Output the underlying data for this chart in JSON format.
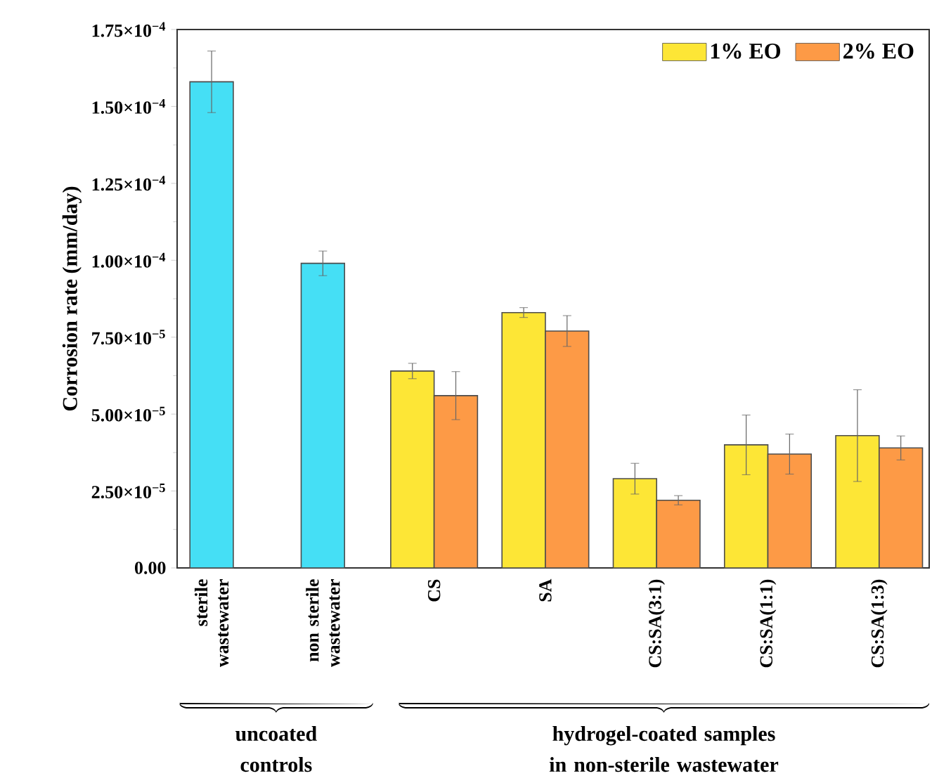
{
  "chart_data": {
    "type": "bar",
    "ylabel": "Corrosion rate (mm/day)",
    "categories": [
      "sterile wastewater",
      "non sterile wastewater",
      "CS",
      "SA",
      "CS:SA(3:1)",
      "CS:SA(1:1)",
      "CS:SA(1:3)"
    ],
    "series": [
      {
        "color": "#45dff5",
        "values": [
          0.000158,
          9.9e-05,
          null,
          null,
          null,
          null,
          null
        ],
        "errors": [
          1e-05,
          4e-06,
          null,
          null,
          null,
          null,
          null
        ]
      },
      {
        "name": "1% EO",
        "color": "#fde636",
        "values": [
          null,
          null,
          6.4e-05,
          8.3e-05,
          2.9e-05,
          4e-05,
          4.3e-05
        ],
        "errors": [
          null,
          null,
          2.5e-06,
          1.6e-06,
          5e-06,
          9.7e-06,
          1.49e-05
        ]
      },
      {
        "name": "2% EO",
        "color": "#fd9a46",
        "values": [
          null,
          null,
          5.6e-05,
          7.7e-05,
          2.2e-05,
          3.7e-05,
          3.9e-05
        ],
        "errors": [
          null,
          null,
          7.8e-06,
          5e-06,
          1.5e-06,
          6.5e-06,
          3.9e-06
        ]
      }
    ],
    "ylim": [
      0,
      0.000175
    ],
    "yticks": [
      {
        "value": 0,
        "label": "0.00"
      },
      {
        "value": 2.5e-05,
        "label": "2.50×10$^{−5}$"
      },
      {
        "value": 5e-05,
        "label": "5.00×10$^{−5}$"
      },
      {
        "value": 7.5e-05,
        "label": "7.50×10$^{−5}$"
      },
      {
        "value": 0.0001,
        "label": "1.00×10$^{−4}$"
      },
      {
        "value": 0.000125,
        "label": "1.25×10$^{−4}$"
      },
      {
        "value": 0.00015,
        "label": "1.50×10$^{−4}$"
      },
      {
        "value": 0.000175,
        "label": "1.75×10$^{−4}$"
      }
    ],
    "legend": "top right",
    "grid": false,
    "annotations": [
      "uncoated controls",
      "hydrogel-coated samples in non-sterile wastewater"
    ]
  }
}
